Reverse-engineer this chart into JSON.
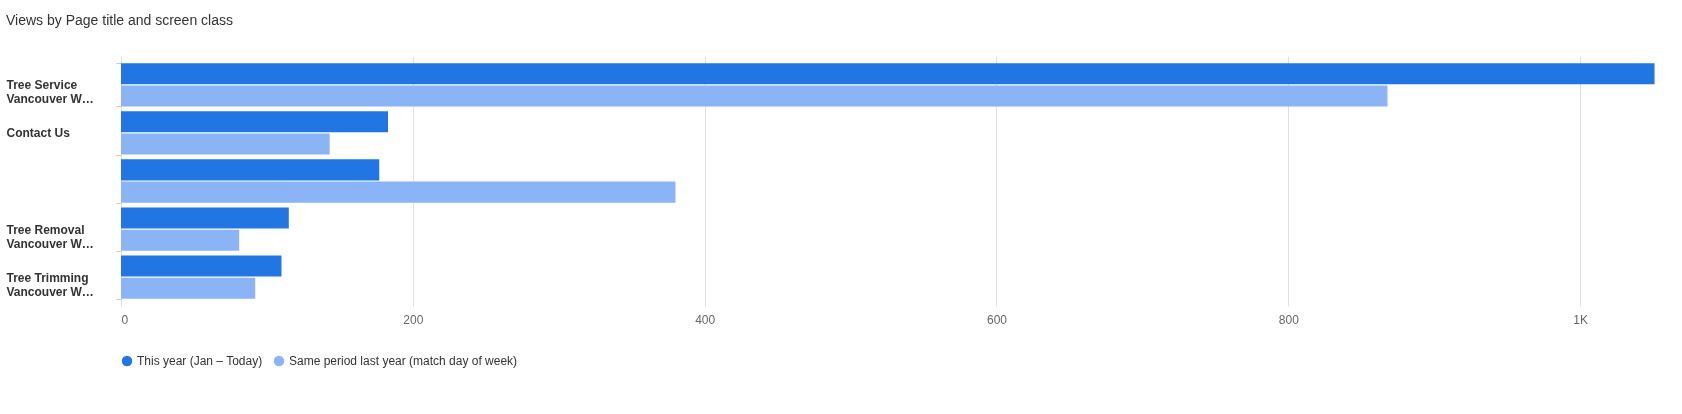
{
  "chart_data": {
    "type": "bar",
    "orientation": "horizontal",
    "title": "Views by Page title and screen class",
    "categories": [
      "Tree Service Vancouver W…",
      "Contact Us",
      null,
      "Tree Removal Vancouver W…",
      "Tree Trimming Vancouver W…"
    ],
    "series": [
      {
        "name": "This year (Jan – Today)",
        "color": "#2276e3",
        "values": [
          1051,
          183,
          177,
          115,
          110
        ]
      },
      {
        "name": "Same period last year (match day of week)",
        "color": "#8ab4f6",
        "values": [
          868,
          143,
          380,
          81,
          92
        ]
      }
    ],
    "xlim": [
      0,
      1052
    ],
    "xticks": [
      0,
      200,
      400,
      600,
      800,
      {
        "value": 1000,
        "label": "1K"
      }
    ],
    "grid": "x",
    "legend": "bottom left"
  }
}
